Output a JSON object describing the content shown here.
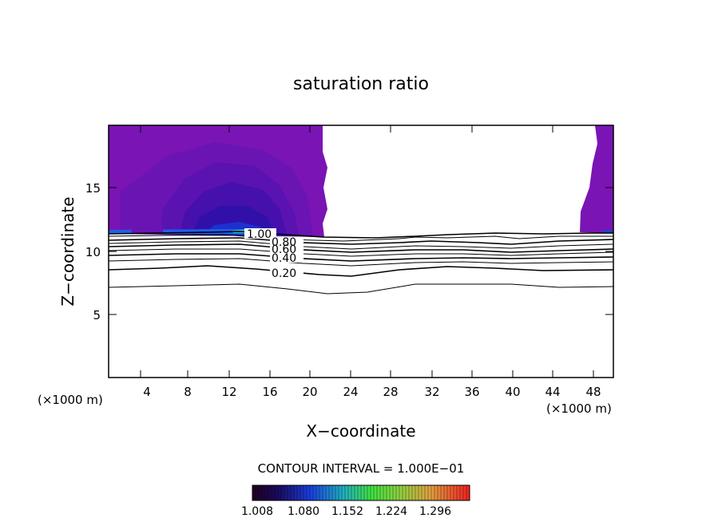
{
  "chart_data": {
    "type": "contour",
    "title": "saturation ratio",
    "xlabel": "X−coordinate",
    "ylabel": "Z−coordinate",
    "x_unit_left": "(×1000 m)",
    "x_unit_right": "(×1000 m)",
    "xlim": [
      0,
      50
    ],
    "ylim": [
      0,
      20
    ],
    "x_ticks": [
      "4",
      "8",
      "12",
      "16",
      "20",
      "24",
      "28",
      "32",
      "36",
      "40",
      "44",
      "48"
    ],
    "y_ticks": [
      "5",
      "10",
      "15"
    ],
    "contour_labels": [
      "1.00",
      "0.80",
      "0.60",
      "0.40",
      "0.20"
    ],
    "contour_levels": [
      0.1,
      0.2,
      0.3,
      0.4,
      0.5,
      0.6,
      0.7,
      0.8,
      0.9,
      1.0
    ],
    "contour_interval_text": "CONTOUR INTERVAL = 1.000E−01",
    "colorbar_ticks": [
      "1.008",
      "1.080",
      "1.152",
      "1.224",
      "1.296"
    ],
    "colorbar_range": [
      1.0,
      1.33
    ],
    "colors": {
      "fill_main": "#7a14b4",
      "fill_mid": "#5a12b0",
      "fill_deep": "#2e10a8",
      "fill_peak": "#1e40d8",
      "fill_max": "#20c8c0"
    }
  }
}
